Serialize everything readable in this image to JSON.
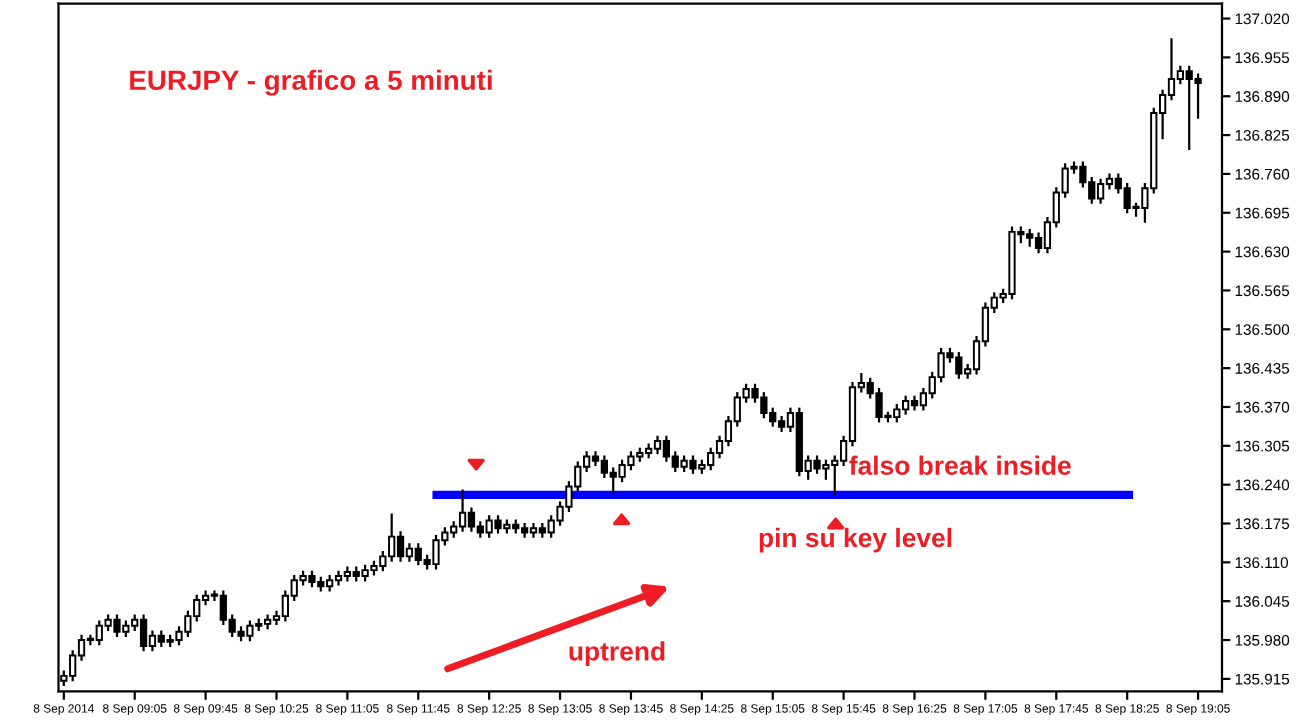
{
  "chart_data": {
    "type": "candlestick",
    "title": "EURJPY - grafico a 5 minuti",
    "categories": [
      "8 Sep 2014",
      null,
      null,
      null,
      null,
      null,
      null,
      null,
      "8 Sep 09:05",
      null,
      null,
      null,
      null,
      null,
      null,
      null,
      "8 Sep 09:45",
      null,
      null,
      null,
      null,
      null,
      null,
      null,
      "8 Sep 10:25",
      null,
      null,
      null,
      null,
      null,
      null,
      null,
      "8 Sep 11:05",
      null,
      null,
      null,
      null,
      null,
      null,
      null,
      "8 Sep 11:45",
      null,
      null,
      null,
      null,
      null,
      null,
      null,
      "8 Sep 12:25",
      null,
      null,
      null,
      null,
      null,
      null,
      null,
      "8 Sep 13:05",
      null,
      null,
      null,
      null,
      null,
      null,
      null,
      "8 Sep 13:45",
      null,
      null,
      null,
      null,
      null,
      null,
      null,
      "8 Sep 14:25",
      null,
      null,
      null,
      null,
      null,
      null,
      null,
      "8 Sep 15:05",
      null,
      null,
      null,
      null,
      null,
      null,
      null,
      "8 Sep 15:45",
      null,
      null,
      null,
      null,
      null,
      null,
      null,
      "8 Sep 16:25",
      null,
      null,
      null,
      null,
      null,
      null,
      null,
      "8 Sep 17:05",
      null,
      null,
      null,
      null,
      null,
      null,
      null,
      "8 Sep 17:45",
      null,
      null,
      null,
      null,
      null,
      null,
      null,
      "8 Sep 18:25",
      null,
      null,
      null,
      null,
      null,
      null,
      null,
      "8 Sep 19:05"
    ],
    "ohlc": [
      [
        135.912,
        135.927,
        135.905,
        135.92
      ],
      [
        135.92,
        135.961,
        135.913,
        135.954
      ],
      [
        135.954,
        135.987,
        135.947,
        135.98
      ],
      [
        135.98,
        135.987,
        135.973,
        135.98
      ],
      [
        135.98,
        136.011,
        135.973,
        136.004
      ],
      [
        136.004,
        136.021,
        135.997,
        136.014
      ],
      [
        136.014,
        136.021,
        135.987,
        135.994
      ],
      [
        135.994,
        136.011,
        135.987,
        136.004
      ],
      [
        136.004,
        136.021,
        135.997,
        136.014
      ],
      [
        136.014,
        136.021,
        135.963,
        135.97
      ],
      [
        135.97,
        135.994,
        135.963,
        135.987
      ],
      [
        135.987,
        135.994,
        135.97,
        135.977
      ],
      [
        135.977,
        135.987,
        135.97,
        135.98
      ],
      [
        135.98,
        136.001,
        135.973,
        135.994
      ],
      [
        135.994,
        136.027,
        135.987,
        136.02
      ],
      [
        136.02,
        136.054,
        136.013,
        136.047
      ],
      [
        136.047,
        136.061,
        136.04,
        136.054
      ],
      [
        136.054,
        136.061,
        136.047,
        136.054
      ],
      [
        136.054,
        136.061,
        136.007,
        136.014
      ],
      [
        136.014,
        136.021,
        135.987,
        135.994
      ],
      [
        135.994,
        136.001,
        135.98,
        135.987
      ],
      [
        135.987,
        136.011,
        135.98,
        136.004
      ],
      [
        136.004,
        136.014,
        135.997,
        136.007
      ],
      [
        136.007,
        136.021,
        136.0,
        136.014
      ],
      [
        136.014,
        136.027,
        136.007,
        136.02
      ],
      [
        136.02,
        136.061,
        136.013,
        136.054
      ],
      [
        136.054,
        136.087,
        136.047,
        136.08
      ],
      [
        136.08,
        136.094,
        136.073,
        136.087
      ],
      [
        136.087,
        136.094,
        136.07,
        136.077
      ],
      [
        136.077,
        136.084,
        136.063,
        136.07
      ],
      [
        136.07,
        136.087,
        136.063,
        136.08
      ],
      [
        136.08,
        136.094,
        136.073,
        136.087
      ],
      [
        136.087,
        136.101,
        136.08,
        136.094
      ],
      [
        136.094,
        136.101,
        136.08,
        136.087
      ],
      [
        136.087,
        136.104,
        136.08,
        136.097
      ],
      [
        136.097,
        136.111,
        136.09,
        136.104
      ],
      [
        136.104,
        136.127,
        136.097,
        136.12
      ],
      [
        136.12,
        136.19,
        136.113,
        136.153
      ],
      [
        136.153,
        136.16,
        136.113,
        136.12
      ],
      [
        136.12,
        136.14,
        136.113,
        136.133
      ],
      [
        136.133,
        136.14,
        136.107,
        136.114
      ],
      [
        136.114,
        136.121,
        136.1,
        136.107
      ],
      [
        136.107,
        136.154,
        136.1,
        136.147
      ],
      [
        136.147,
        136.167,
        136.14,
        136.16
      ],
      [
        136.16,
        136.177,
        136.153,
        136.17
      ],
      [
        136.17,
        136.23,
        136.163,
        136.193
      ],
      [
        136.193,
        136.2,
        136.163,
        136.17
      ],
      [
        136.17,
        136.177,
        136.153,
        136.16
      ],
      [
        136.16,
        136.187,
        136.153,
        136.18
      ],
      [
        136.18,
        136.187,
        136.16,
        136.167
      ],
      [
        136.167,
        136.18,
        136.16,
        136.173
      ],
      [
        136.173,
        136.18,
        136.16,
        136.167
      ],
      [
        136.167,
        136.174,
        136.153,
        136.16
      ],
      [
        136.16,
        136.174,
        136.153,
        136.167
      ],
      [
        136.167,
        136.174,
        136.153,
        136.16
      ],
      [
        136.16,
        136.187,
        136.153,
        136.18
      ],
      [
        136.18,
        136.21,
        136.173,
        136.203
      ],
      [
        136.203,
        136.244,
        136.196,
        136.237
      ],
      [
        136.237,
        136.277,
        136.23,
        136.27
      ],
      [
        136.27,
        136.294,
        136.263,
        136.287
      ],
      [
        136.287,
        136.294,
        136.273,
        136.28
      ],
      [
        136.28,
        136.287,
        136.253,
        136.26
      ],
      [
        136.26,
        136.267,
        136.226,
        136.253
      ],
      [
        136.253,
        136.28,
        136.246,
        136.273
      ],
      [
        136.273,
        136.294,
        136.266,
        136.287
      ],
      [
        136.287,
        136.3,
        136.28,
        136.293
      ],
      [
        136.293,
        136.307,
        136.286,
        136.3
      ],
      [
        136.3,
        136.32,
        136.293,
        136.313
      ],
      [
        136.313,
        136.32,
        136.28,
        136.287
      ],
      [
        136.287,
        136.294,
        136.263,
        136.27
      ],
      [
        136.27,
        136.287,
        136.263,
        136.28
      ],
      [
        136.28,
        136.287,
        136.26,
        136.267
      ],
      [
        136.267,
        136.28,
        136.26,
        136.273
      ],
      [
        136.273,
        136.3,
        136.266,
        136.293
      ],
      [
        136.293,
        136.32,
        136.286,
        136.313
      ],
      [
        136.313,
        136.353,
        136.306,
        136.346
      ],
      [
        136.346,
        136.393,
        136.339,
        136.386
      ],
      [
        136.386,
        136.407,
        136.379,
        136.4
      ],
      [
        136.4,
        136.407,
        136.379,
        136.386
      ],
      [
        136.386,
        136.393,
        136.353,
        136.36
      ],
      [
        136.36,
        136.367,
        136.339,
        136.346
      ],
      [
        136.346,
        136.353,
        136.33,
        136.337
      ],
      [
        136.337,
        136.367,
        136.33,
        136.36
      ],
      [
        136.36,
        136.367,
        136.256,
        136.263
      ],
      [
        136.263,
        136.287,
        136.25,
        136.28
      ],
      [
        136.28,
        136.287,
        136.26,
        136.267
      ],
      [
        136.267,
        136.28,
        136.25,
        136.273
      ],
      [
        136.273,
        136.287,
        136.224,
        136.28
      ],
      [
        136.28,
        136.32,
        136.273,
        136.313
      ],
      [
        136.313,
        136.41,
        136.306,
        136.403
      ],
      [
        136.403,
        136.425,
        136.396,
        136.41
      ],
      [
        136.41,
        136.417,
        136.386,
        136.393
      ],
      [
        136.393,
        136.4,
        136.346,
        136.353
      ],
      [
        136.353,
        136.36,
        136.346,
        136.353
      ],
      [
        136.353,
        136.373,
        136.346,
        136.366
      ],
      [
        136.366,
        136.387,
        136.359,
        136.38
      ],
      [
        136.38,
        136.387,
        136.366,
        136.373
      ],
      [
        136.373,
        136.4,
        136.366,
        136.393
      ],
      [
        136.393,
        136.427,
        136.386,
        136.42
      ],
      [
        136.42,
        136.467,
        136.413,
        136.46
      ],
      [
        136.46,
        136.467,
        136.446,
        136.453
      ],
      [
        136.453,
        136.46,
        136.419,
        136.426
      ],
      [
        136.426,
        136.44,
        136.419,
        136.433
      ],
      [
        136.433,
        136.487,
        136.426,
        136.48
      ],
      [
        136.48,
        136.543,
        136.473,
        136.536
      ],
      [
        136.536,
        136.56,
        136.529,
        136.553
      ],
      [
        136.553,
        136.566,
        136.546,
        136.559
      ],
      [
        136.559,
        136.67,
        136.552,
        136.663
      ],
      [
        136.663,
        136.67,
        136.646,
        136.659
      ],
      [
        136.659,
        136.666,
        136.64,
        136.653
      ],
      [
        136.653,
        136.66,
        136.629,
        136.636
      ],
      [
        136.636,
        136.686,
        136.629,
        136.679
      ],
      [
        136.679,
        136.736,
        136.672,
        136.729
      ],
      [
        136.729,
        136.776,
        136.722,
        136.769
      ],
      [
        136.769,
        136.779,
        136.762,
        136.772
      ],
      [
        136.772,
        136.779,
        136.739,
        136.746
      ],
      [
        136.746,
        136.753,
        136.712,
        136.719
      ],
      [
        136.719,
        136.75,
        136.712,
        136.743
      ],
      [
        136.743,
        136.759,
        136.736,
        136.752
      ],
      [
        136.752,
        136.759,
        136.729,
        136.736
      ],
      [
        136.736,
        136.743,
        136.696,
        136.703
      ],
      [
        136.703,
        136.71,
        136.69,
        136.703
      ],
      [
        136.703,
        136.743,
        136.68,
        136.736
      ],
      [
        136.736,
        136.869,
        136.729,
        136.862
      ],
      [
        136.862,
        136.899,
        136.82,
        136.892
      ],
      [
        136.892,
        136.985,
        136.885,
        136.919
      ],
      [
        136.919,
        136.939,
        136.912,
        136.932
      ],
      [
        136.932,
        136.939,
        136.802,
        136.919
      ],
      [
        136.919,
        136.926,
        136.854,
        136.912
      ]
    ],
    "ref_lines": [
      {
        "axis": "y",
        "value": 136.223,
        "color": "#0000ff"
      }
    ],
    "annotations": [
      "falso break inside",
      "pin su key level",
      "uptrend"
    ],
    "ylim": [
      135.894,
      137.045
    ],
    "yticks": [
      {
        "value": 137.02,
        "label": "137.020"
      },
      136.955,
      {
        "value": 136.89,
        "label": "136.890"
      },
      136.825,
      {
        "value": 136.76,
        "label": "136.760"
      },
      136.695,
      {
        "value": 136.63,
        "label": "136.630"
      },
      136.565,
      {
        "value": 136.5,
        "label": "136.500"
      },
      136.435,
      {
        "value": 136.37,
        "label": "136.370"
      },
      136.305,
      {
        "value": 136.24,
        "label": "136.240"
      },
      136.175,
      {
        "value": 136.11,
        "label": "136.110"
      },
      136.045,
      {
        "value": 135.98,
        "label": "135.980"
      },
      135.915
    ],
    "grid": false,
    "legend": false
  }
}
